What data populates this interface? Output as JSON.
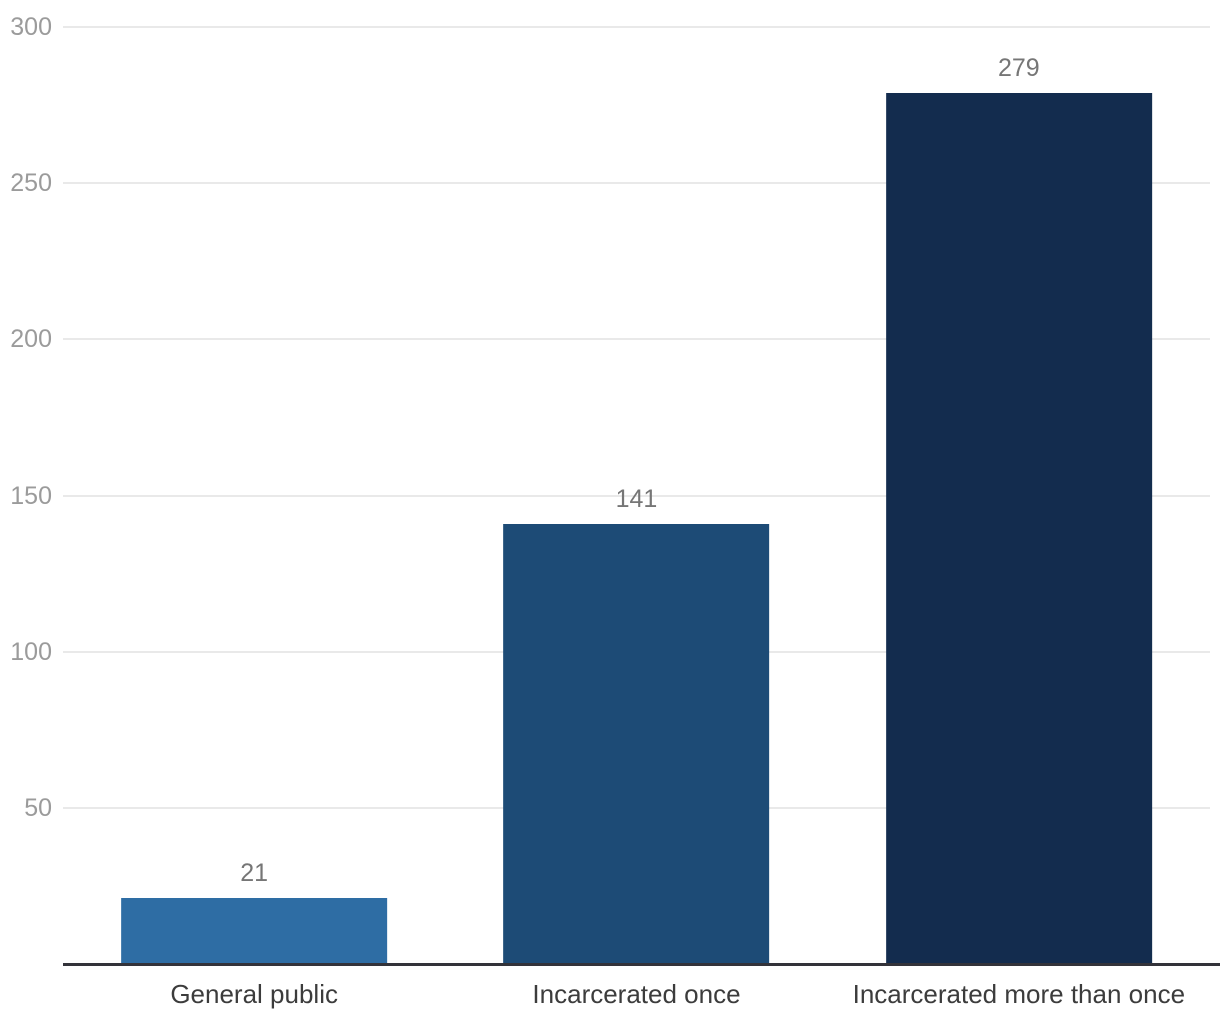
{
  "chart_data": {
    "type": "bar",
    "title": "",
    "xlabel": "",
    "ylabel": "",
    "categories": [
      "General public",
      "Incarcerated once",
      "Incarcerated more than once"
    ],
    "values": [
      21,
      141,
      279
    ],
    "value_labels": [
      "21",
      "141",
      "279"
    ],
    "bar_colors": [
      "#2e6da4",
      "#1d4b76",
      "#132c4e"
    ],
    "ylim": [
      0,
      300
    ],
    "yticks": [
      50,
      100,
      150,
      200,
      250,
      300
    ],
    "grid": true,
    "legend": "none",
    "colors": {
      "background": "#ffffff",
      "gridline": "#e9e9e9",
      "axis_line": "#33333a",
      "tick_label": "#9b9b9b",
      "value_label": "#767676",
      "category_label": "#3c3c3c"
    }
  }
}
